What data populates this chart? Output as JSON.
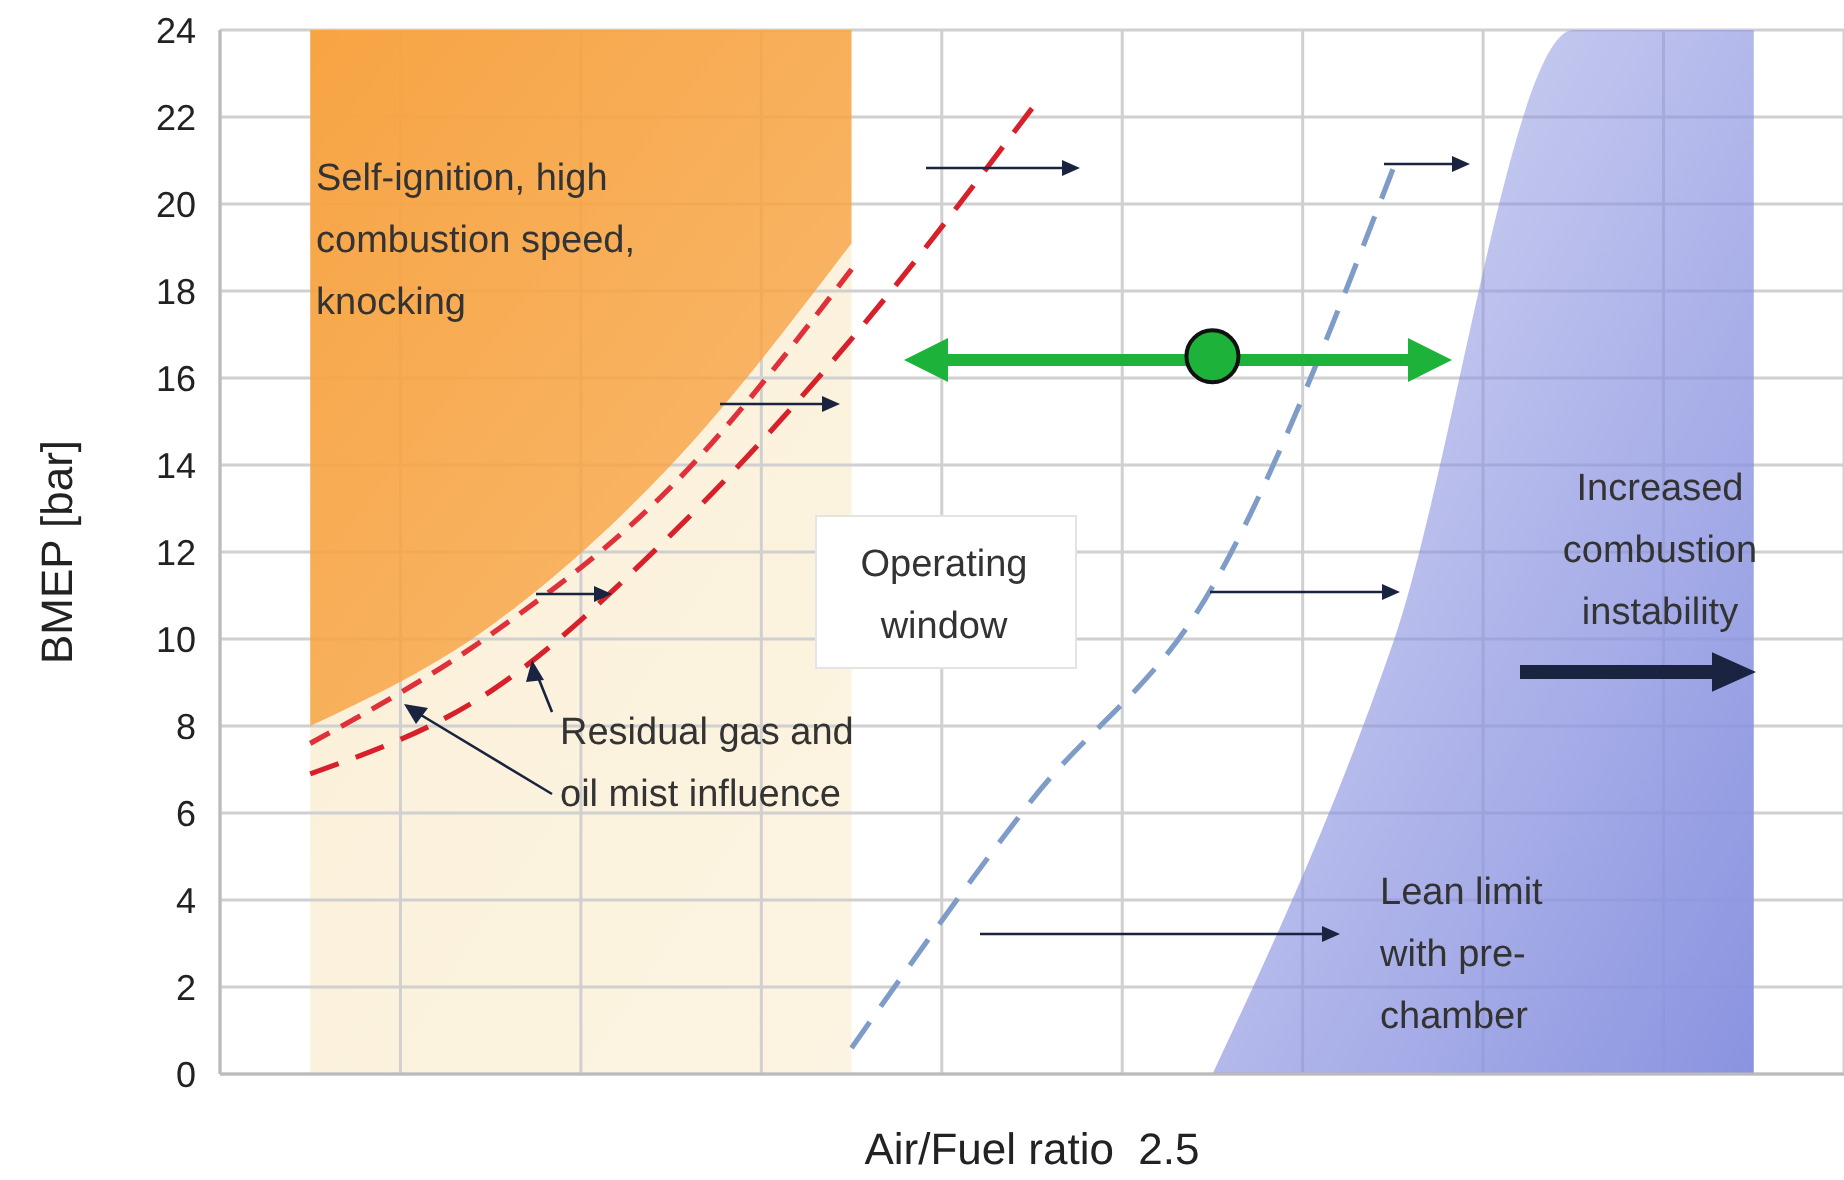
{
  "chart_data": {
    "type": "line",
    "xlabel": "Air/Fuel ratio  2.5",
    "ylabel": "BMEP [bar]",
    "categories": [
      null,
      null,
      null,
      null,
      null,
      null,
      null,
      null,
      null
    ],
    "ylim": [
      0,
      24
    ],
    "yticks": [
      0,
      2,
      4,
      6,
      8,
      10,
      12,
      14,
      16,
      18,
      20,
      22,
      24
    ],
    "grid": true,
    "stacked": true,
    "series": [
      {
        "type": "area",
        "color": "#fbf0d8",
        "values": [
          8.0,
          10.3,
          14.0,
          19.1,
          null,
          null,
          null,
          null,
          null
        ]
      },
      {
        "type": "area",
        "color": "#f7a443",
        "values": [
          16.0,
          13.7,
          10.0,
          4.9,
          null,
          null,
          null,
          null,
          null
        ]
      },
      {
        "type": "area",
        "color": "#8a93e0",
        "values": [
          null,
          null,
          null,
          null,
          null,
          0,
          9.9,
          24,
          24
        ]
      },
      {
        "color": "#e0303a",
        "line_style": "dashed",
        "values": [
          7.6,
          10.1,
          13.5,
          18.5,
          null,
          null,
          null,
          null,
          null
        ]
      },
      {
        "color": "#d8202a",
        "line_style": "dashed",
        "values": [
          6.9,
          8.8,
          12.4,
          16.9,
          22.2,
          null,
          null,
          null,
          null
        ]
      },
      {
        "color": "#7f9cc8",
        "line_style": "dashed",
        "values": [
          null,
          null,
          null,
          0.6,
          6.3,
          11.2,
          20.8,
          null,
          null
        ]
      },
      {
        "type": "scatter",
        "color": "#1db33a",
        "marker": "circle",
        "values": [
          null,
          null,
          null,
          null,
          null,
          16.5,
          null,
          null,
          null
        ]
      }
    ],
    "annotations": [
      "Self-ignition, high\ncombustion speed,\nknocking",
      "Operating\nwindow",
      "Residual gas and\noil mist influence",
      "Increased\ncombustion\ninstability",
      "Lean limit\nwith pre-\nchamber"
    ]
  }
}
